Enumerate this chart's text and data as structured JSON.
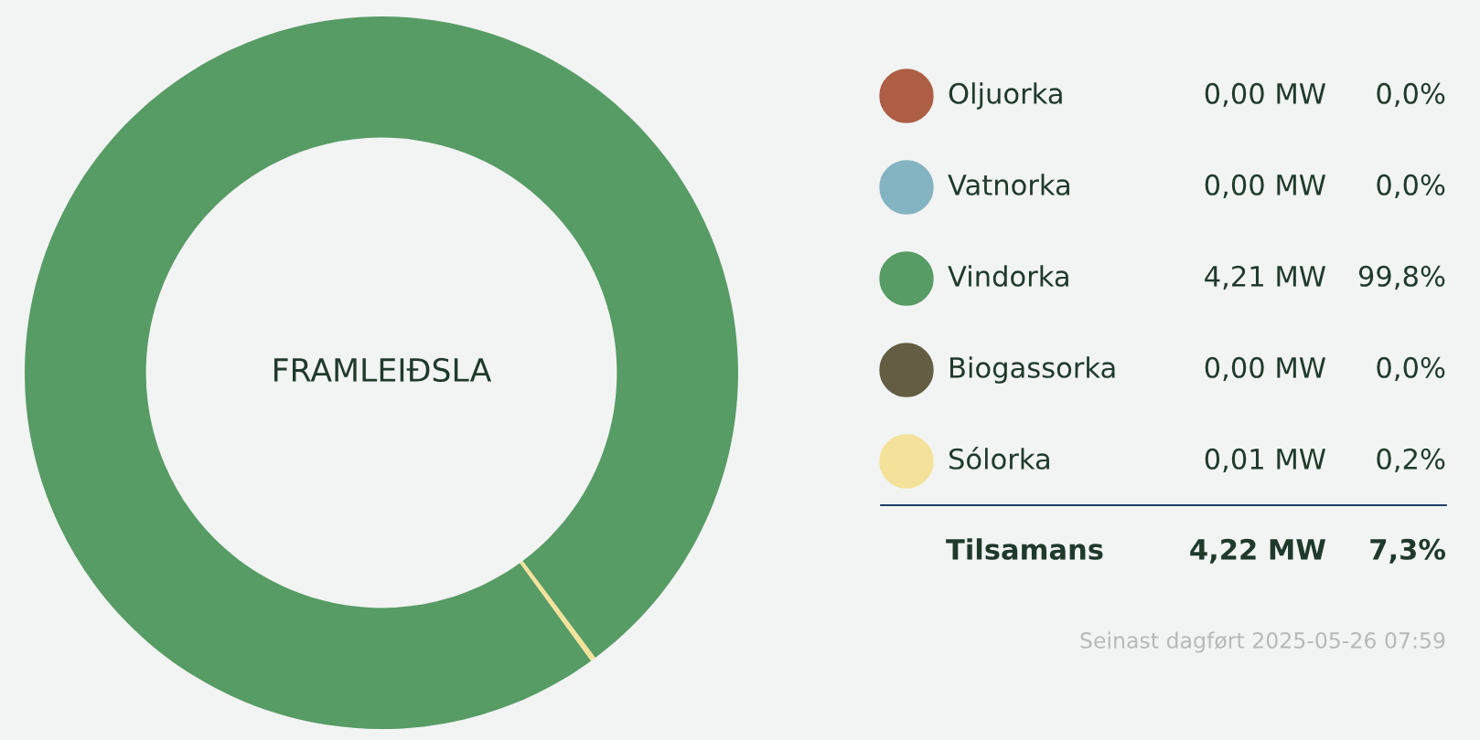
{
  "chart_data": {
    "type": "donut",
    "title": "FRAMLEIÐSLA",
    "categories": [
      "Oljuorka",
      "Vatnorka",
      "Vindorka",
      "Biogassorka",
      "Sólorka"
    ],
    "values": [
      0.0,
      0.0,
      4.21,
      0.0,
      0.01
    ],
    "colors": [
      "#ad5e45",
      "#84b3c2",
      "#579b65",
      "#625d43",
      "#f5e29a"
    ],
    "value_labels": [
      "0,00 MW",
      "0,00 MW",
      "4,21 MW",
      "0,00 MW",
      "0,01 MW"
    ],
    "legend": "right",
    "annotations": [
      "0,0%",
      "0,0%",
      "99,8%",
      "0,0%",
      "0,2%",
      "Tilsamans",
      "4,22 MW",
      "7,3%",
      "Seinast dagført 2025-05-26 07:59"
    ]
  }
}
